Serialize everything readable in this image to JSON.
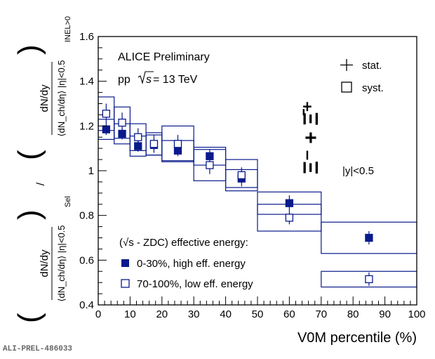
{
  "preliminary_id": "ALI-PREL-486033",
  "colors": {
    "series": "#0a1a8c",
    "axis": "#000000"
  },
  "chart_data": {
    "type": "scatter",
    "experiment": "ALICE Preliminary",
    "system_prefix": "pp",
    "system_energy": "s",
    "system_value": " = 13 TeV",
    "particle": "Ξ⁻ + Ξ̄⁺",
    "rapidity": "|y|<0.5",
    "xlabel": "V0M percentile (%)",
    "ylabel": {
      "numerator_top": "dN/dy",
      "numerator_ratio": "⟨dN_ch/dη⟩ |η|<0.5",
      "numerator_subscript": "Sel",
      "denominator_top": "dN/dy",
      "denominator_ratio": "⟨dN_ch/dη⟩ |η|<0.5",
      "denominator_subscript": "INEL>0"
    },
    "xlim": [
      0,
      100
    ],
    "ylim": [
      0.4,
      1.6
    ],
    "x_ticks": [
      0,
      10,
      20,
      30,
      40,
      50,
      60,
      70,
      80,
      90,
      100
    ],
    "y_ticks": [
      0.4,
      0.6,
      0.8,
      1,
      1.2,
      1.4,
      1.6
    ],
    "legend_top": [
      {
        "marker": "cross",
        "label": "stat."
      },
      {
        "marker": "open-square",
        "label": "syst."
      }
    ],
    "legend_bottom_title": "(√s - ZDC) effective energy:",
    "series": [
      {
        "name": "0-30%, high eff. energy",
        "marker": "filled-square",
        "x": [
          2.5,
          7.5,
          12.5,
          17.5,
          25,
          35,
          45,
          60,
          85
        ],
        "y": [
          1.185,
          1.165,
          1.11,
          1.115,
          1.09,
          1.065,
          0.965,
          0.855,
          0.7
        ],
        "x_low": [
          0,
          5,
          10,
          15,
          20,
          30,
          40,
          50,
          70
        ],
        "x_high": [
          5,
          10,
          15,
          20,
          30,
          40,
          50,
          70,
          100
        ],
        "stat": [
          0.025,
          0.025,
          0.025,
          0.025,
          0.025,
          0.03,
          0.035,
          0.035,
          0.03
        ],
        "syst": [
          0.045,
          0.045,
          0.045,
          0.045,
          0.045,
          0.04,
          0.04,
          0.05,
          0.07
        ]
      },
      {
        "name": "70-100%, low eff. energy",
        "marker": "open-square",
        "x": [
          2.5,
          7.5,
          12.5,
          17.5,
          25,
          35,
          45,
          60,
          85
        ],
        "y": [
          1.255,
          1.215,
          1.15,
          1.12,
          1.12,
          1.025,
          0.98,
          0.79,
          0.515
        ],
        "x_low": [
          0,
          5,
          10,
          15,
          20,
          30,
          40,
          50,
          70
        ],
        "x_high": [
          5,
          10,
          15,
          20,
          30,
          40,
          50,
          70,
          100
        ],
        "stat": [
          0.045,
          0.045,
          0.04,
          0.04,
          0.04,
          0.04,
          0.035,
          0.03,
          0.03
        ],
        "syst": [
          0.075,
          0.07,
          0.06,
          0.05,
          0.08,
          0.07,
          0.07,
          0.06,
          0.035
        ]
      }
    ]
  }
}
